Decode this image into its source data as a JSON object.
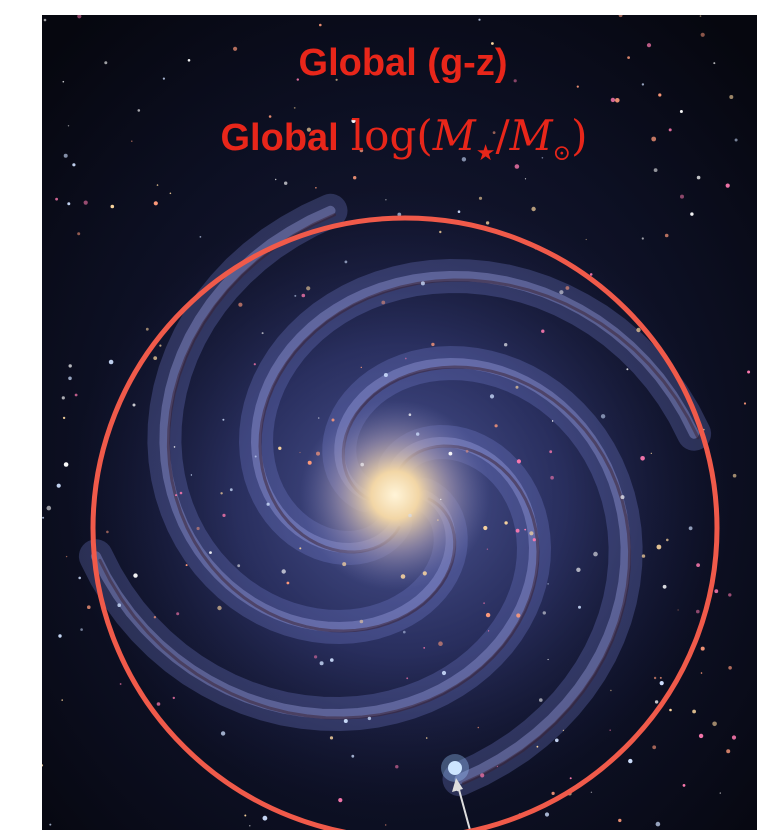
{
  "overlay": {
    "line1": "Global (g-z)",
    "line2": {
      "label": "Global",
      "math": {
        "base": "log(",
        "m1": "M",
        "sub1": "★",
        "slash": "/",
        "m2": "M",
        "sub2": "⊙",
        "end": ")"
      }
    }
  }
}
